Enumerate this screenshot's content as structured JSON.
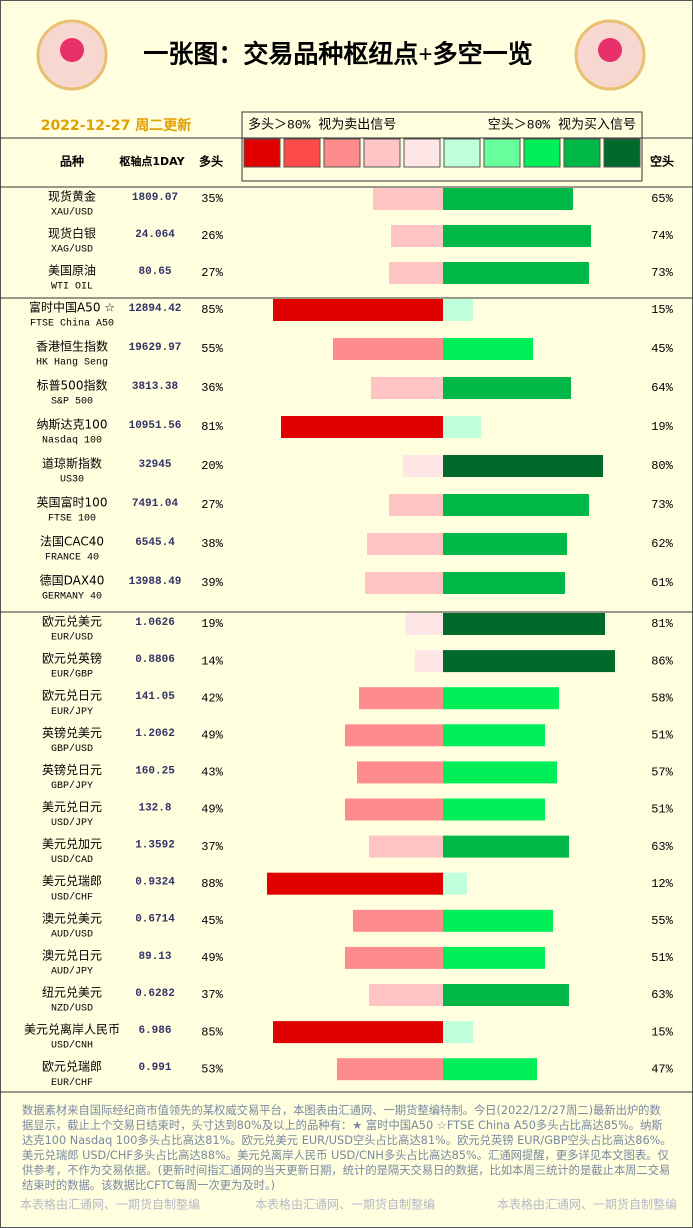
{
  "chart_data": {
    "type": "diverging-bar",
    "title": "一张图：交易品种枢纽点+多空一览",
    "date": "2022-12-27 周二更新",
    "legend": {
      "long_text": "多头＞80% 视为卖出信号",
      "short_text": "空头＞80% 视为买入信号",
      "colors": [
        "#e00000",
        "#ff4a4a",
        "#ff8c8c",
        "#ffc4c4",
        "#ffe6e6",
        "#c0ffdc",
        "#66ff9c",
        "#00ee58",
        "#00b848",
        "#006a2c"
      ]
    },
    "columns": {
      "name": "品种",
      "pivot": "枢轴点1DAY",
      "long": "多头",
      "short": "空头"
    },
    "groups": [
      {
        "rows": [
          {
            "name": "现货黄金",
            "code": "XAU/USD",
            "pivot": 1809.07,
            "long": 35,
            "long_label": "35%",
            "short": 65,
            "short_label": "65%"
          },
          {
            "name": "现货白银",
            "code": "XAG/USD",
            "pivot": 24.064,
            "long": 26,
            "long_label": "26%",
            "short": 74,
            "short_label": "74%"
          },
          {
            "name": "美国原油",
            "code": "WTI OIL",
            "pivot": 80.65,
            "long": 27,
            "long_label": "27%",
            "short": 73,
            "short_label": "73%"
          }
        ]
      },
      {
        "rows": [
          {
            "name": "富时中国A50 ☆",
            "code": "FTSE China A50",
            "pivot": 12894.42,
            "long": 85,
            "long_label": "85%",
            "short": 15,
            "short_label": "15%"
          },
          {
            "name": "香港恒生指数",
            "code": "HK Hang Seng",
            "pivot": 19629.97,
            "long": 55,
            "long_label": "55%",
            "short": 45,
            "short_label": "45%"
          },
          {
            "name": "标普500指数",
            "code": "S&P 500",
            "pivot": 3813.38,
            "long": 36,
            "long_label": "36%",
            "short": 64,
            "short_label": "64%"
          },
          {
            "name": "纳斯达克100",
            "code": "Nasdaq 100",
            "pivot": 10951.56,
            "long": 81,
            "long_label": "81%",
            "short": 19,
            "short_label": "19%"
          },
          {
            "name": "道琼斯指数",
            "code": "US30",
            "pivot": 32945,
            "long": 20,
            "long_label": "20%",
            "short": 80,
            "short_label": "80%"
          },
          {
            "name": "英国富时100",
            "code": "FTSE 100",
            "pivot": 7491.04,
            "long": 27,
            "long_label": "27%",
            "short": 73,
            "short_label": "73%"
          },
          {
            "name": "法国CAC40",
            "code": "FRANCE 40",
            "pivot": 6545.4,
            "long": 38,
            "long_label": "38%",
            "short": 62,
            "short_label": "62%"
          },
          {
            "name": "德国DAX40",
            "code": "GERMANY 40",
            "pivot": 13988.49,
            "long": 39,
            "long_label": "39%",
            "short": 61,
            "short_label": "61%"
          }
        ]
      },
      {
        "rows": [
          {
            "name": "欧元兑美元",
            "code": "EUR/USD",
            "pivot": 1.0626,
            "long": 19,
            "long_label": "19%",
            "short": 81,
            "short_label": "81%"
          },
          {
            "name": "欧元兑英镑",
            "code": "EUR/GBP",
            "pivot": 0.8806,
            "long": 14,
            "long_label": "14%",
            "short": 86,
            "short_label": "86%"
          },
          {
            "name": "欧元兑日元",
            "code": "EUR/JPY",
            "pivot": 141.05,
            "long": 42,
            "long_label": "42%",
            "short": 58,
            "short_label": "58%"
          },
          {
            "name": "英镑兑美元",
            "code": "GBP/USD",
            "pivot": 1.2062,
            "long": 49,
            "long_label": "49%",
            "short": 51,
            "short_label": "51%"
          },
          {
            "name": "英镑兑日元",
            "code": "GBP/JPY",
            "pivot": 160.25,
            "long": 43,
            "long_label": "43%",
            "short": 57,
            "short_label": "57%"
          },
          {
            "name": "美元兑日元",
            "code": "USD/JPY",
            "pivot": 132.8,
            "long": 49,
            "long_label": "49%",
            "short": 51,
            "short_label": "51%"
          },
          {
            "name": "美元兑加元",
            "code": "USD/CAD",
            "pivot": 1.3592,
            "long": 37,
            "long_label": "37%",
            "short": 63,
            "short_label": "63%"
          },
          {
            "name": "美元兑瑞郎",
            "code": "USD/CHF",
            "pivot": 0.9324,
            "long": 88,
            "long_label": "88%",
            "short": 12,
            "short_label": "12%"
          },
          {
            "name": "澳元兑美元",
            "code": "AUD/USD",
            "pivot": 0.6714,
            "long": 45,
            "long_label": "45%",
            "short": 55,
            "short_label": "55%"
          },
          {
            "name": "澳元兑日元",
            "code": "AUD/JPY",
            "pivot": 89.13,
            "long": 49,
            "long_label": "49%",
            "short": 51,
            "short_label": "51%"
          },
          {
            "name": "纽元兑美元",
            "code": "NZD/USD",
            "pivot": 0.6282,
            "long": 37,
            "long_label": "37%",
            "short": 63,
            "short_label": "63%"
          },
          {
            "name": "美元兑离岸人民币",
            "code": "USD/CNH",
            "pivot": 6.986,
            "long": 85,
            "long_label": "85%",
            "short": 15,
            "short_label": "15%"
          },
          {
            "name": "欧元兑瑞郎",
            "code": "EUR/CHF",
            "pivot": 0.991,
            "long": 53,
            "long_label": "53%",
            "short": 47,
            "short_label": "47%"
          }
        ]
      }
    ],
    "footer": {
      "text": "数据素材来自国际经纪商市值领先的某权威交易平台，本图表由汇通网、一期货整编特制。今日(2022/12/27周二)最新出炉的数据显示，截止上个交易日结束时，头寸达到80%及以上的品种有：★ 富时中国A50 ☆FTSE China A50多头占比高达85%。纳斯达克100 Nasdaq 100多头占比高达81%。欧元兑美元 EUR/USD空头占比高达81%。欧元兑英镑 EUR/GBP空头占比高达86%。美元兑瑞郎 USD/CHF多头占比高达88%。美元兑离岸人民币 USD/CNH多头占比高达85%。汇通网提醒，更多详见本文图表。仅供参考，不作为交易依据。(更新时间指汇通网的当天更新日期，统计的是隔天交易日的数据，比如本周三统计的是截止本周二交易结束时的数据。该数据比CFTC每周一次更为及时。)",
      "watermark": "本表格由汇通网、一期货自制整编"
    }
  }
}
